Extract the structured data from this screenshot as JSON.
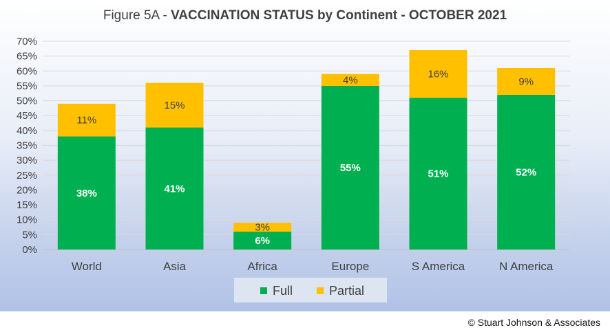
{
  "title": {
    "prefix": "Figure 5A - ",
    "main": "VACCINATION STATUS by Continent - OCTOBER 2021"
  },
  "copyright": "© Stuart Johnson & Associates",
  "colors": {
    "full": "#00b050",
    "partial": "#ffc000",
    "grid": "#d9d9d9",
    "axis_text": "#404040"
  },
  "chart_data": {
    "type": "bar",
    "stacked": true,
    "categories": [
      "World",
      "Asia",
      "Africa",
      "Europe",
      "S America",
      "N America"
    ],
    "series": [
      {
        "name": "Full",
        "values": [
          38,
          41,
          6,
          55,
          51,
          52
        ],
        "labels": [
          "38%",
          "41%",
          "6%",
          "55%",
          "51%",
          "52%"
        ]
      },
      {
        "name": "Partial",
        "values": [
          11,
          15,
          3,
          4,
          16,
          9
        ],
        "labels": [
          "11%",
          "15%",
          "3%",
          "4%",
          "16%",
          "9%"
        ]
      }
    ],
    "ylim": [
      0,
      70
    ],
    "yticks": [
      0,
      5,
      10,
      15,
      20,
      25,
      30,
      35,
      40,
      45,
      50,
      55,
      60,
      65,
      70
    ],
    "ytick_labels": [
      "0%",
      "5%",
      "10%",
      "15%",
      "20%",
      "25%",
      "30%",
      "35%",
      "40%",
      "45%",
      "50%",
      "55%",
      "60%",
      "65%",
      "70%"
    ],
    "grid": true,
    "legend": "bottom"
  }
}
